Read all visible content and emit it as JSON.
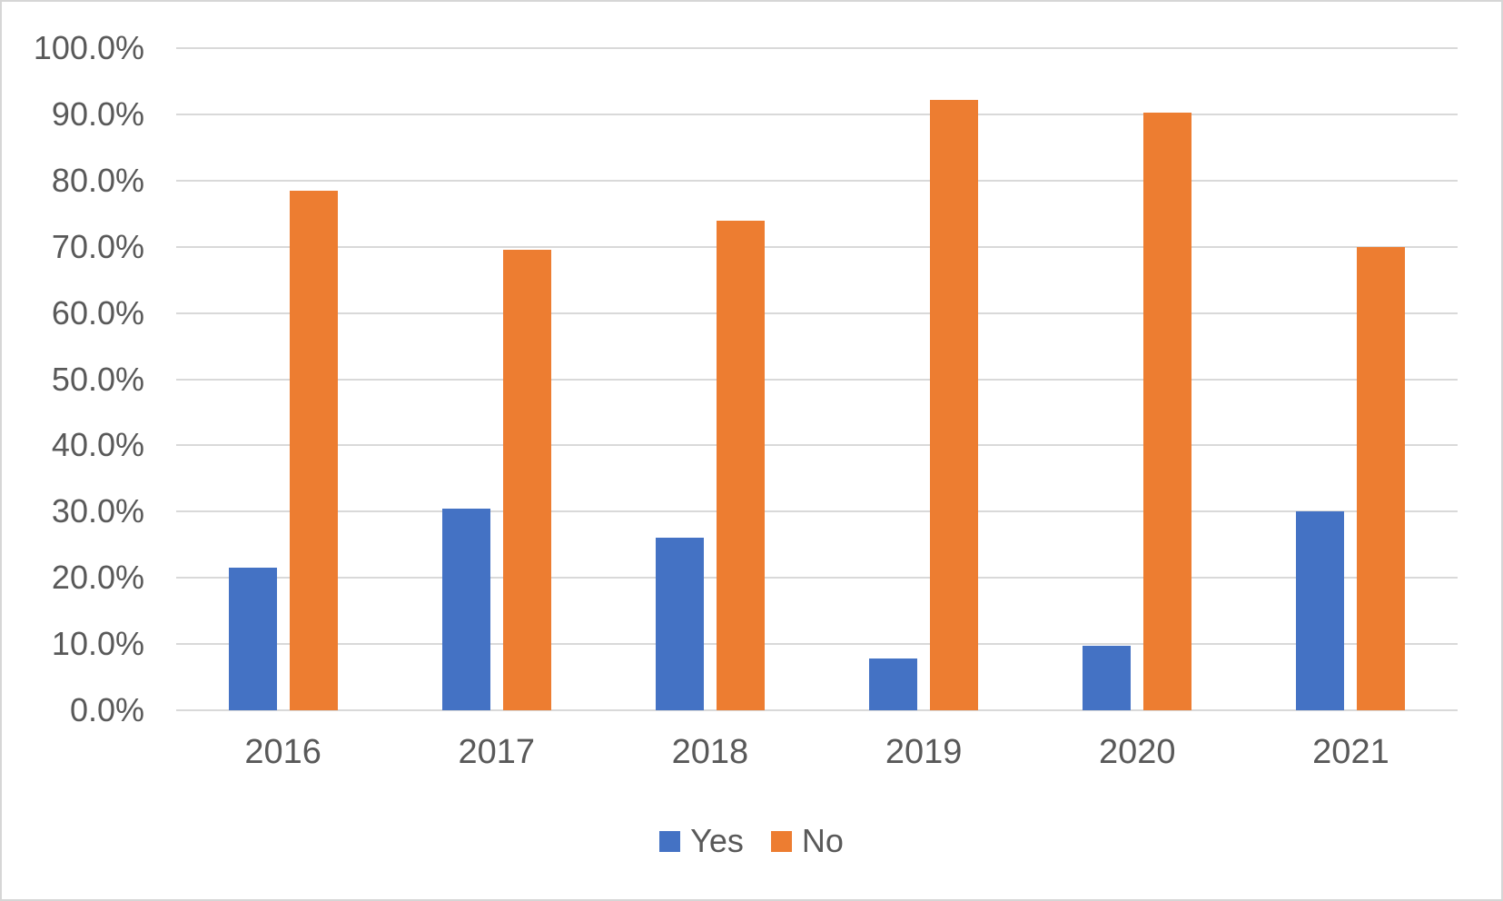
{
  "chart_data": {
    "type": "bar",
    "title": "",
    "xlabel": "",
    "ylabel": "",
    "categories": [
      "2016",
      "2017",
      "2018",
      "2019",
      "2020",
      "2021"
    ],
    "series": [
      {
        "name": "Yes",
        "color": "#4472C4",
        "values": [
          21.5,
          30.4,
          26.1,
          7.8,
          9.8,
          30.0
        ]
      },
      {
        "name": "No",
        "color": "#ED7D31",
        "values": [
          78.5,
          69.6,
          73.9,
          92.2,
          90.2,
          70.0
        ]
      }
    ],
    "ylim": [
      0,
      100
    ],
    "ytick_step": 10,
    "ytick_labels": [
      "0.0%",
      "10.0%",
      "20.0%",
      "30.0%",
      "40.0%",
      "50.0%",
      "60.0%",
      "70.0%",
      "80.0%",
      "90.0%",
      "100.0%"
    ],
    "grid": true,
    "legend_position": "bottom",
    "legend_entries": [
      "Yes",
      "No"
    ]
  },
  "colors": {
    "background": "#FFFFFF",
    "gridline": "#D9D9D9",
    "axis_text": "#595959",
    "frame_border": "#D6D6D6",
    "series_yes": "#4472C4",
    "series_no": "#ED7D31"
  }
}
